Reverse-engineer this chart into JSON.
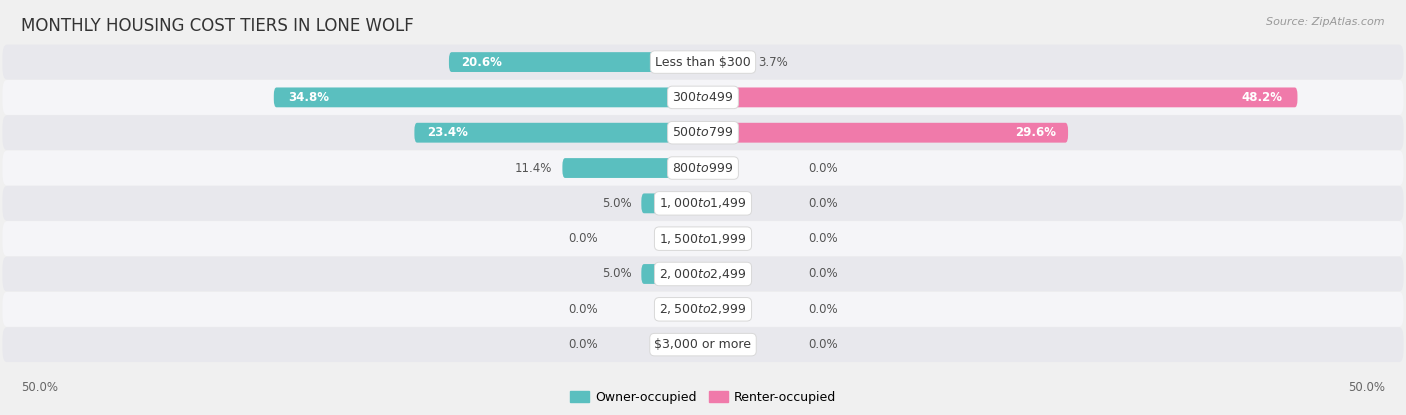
{
  "title": "MONTHLY HOUSING COST TIERS IN LONE WOLF",
  "source": "Source: ZipAtlas.com",
  "categories": [
    "Less than $300",
    "$300 to $499",
    "$500 to $799",
    "$800 to $999",
    "$1,000 to $1,499",
    "$1,500 to $1,999",
    "$2,000 to $2,499",
    "$2,500 to $2,999",
    "$3,000 or more"
  ],
  "owner_values": [
    20.6,
    34.8,
    23.4,
    11.4,
    5.0,
    0.0,
    5.0,
    0.0,
    0.0
  ],
  "renter_values": [
    3.7,
    48.2,
    29.6,
    0.0,
    0.0,
    0.0,
    0.0,
    0.0,
    0.0
  ],
  "owner_color": "#5abfbf",
  "renter_color": "#f07aaa",
  "owner_label": "Owner-occupied",
  "renter_label": "Renter-occupied",
  "max_value": 50.0,
  "bg_color": "#f0f0f0",
  "row_colors": [
    "#e8e8ed",
    "#f5f5f8"
  ],
  "axis_label_left": "50.0%",
  "axis_label_right": "50.0%",
  "title_fontsize": 12,
  "source_fontsize": 8,
  "category_fontsize": 9,
  "value_fontsize": 8.5,
  "legend_fontsize": 9
}
